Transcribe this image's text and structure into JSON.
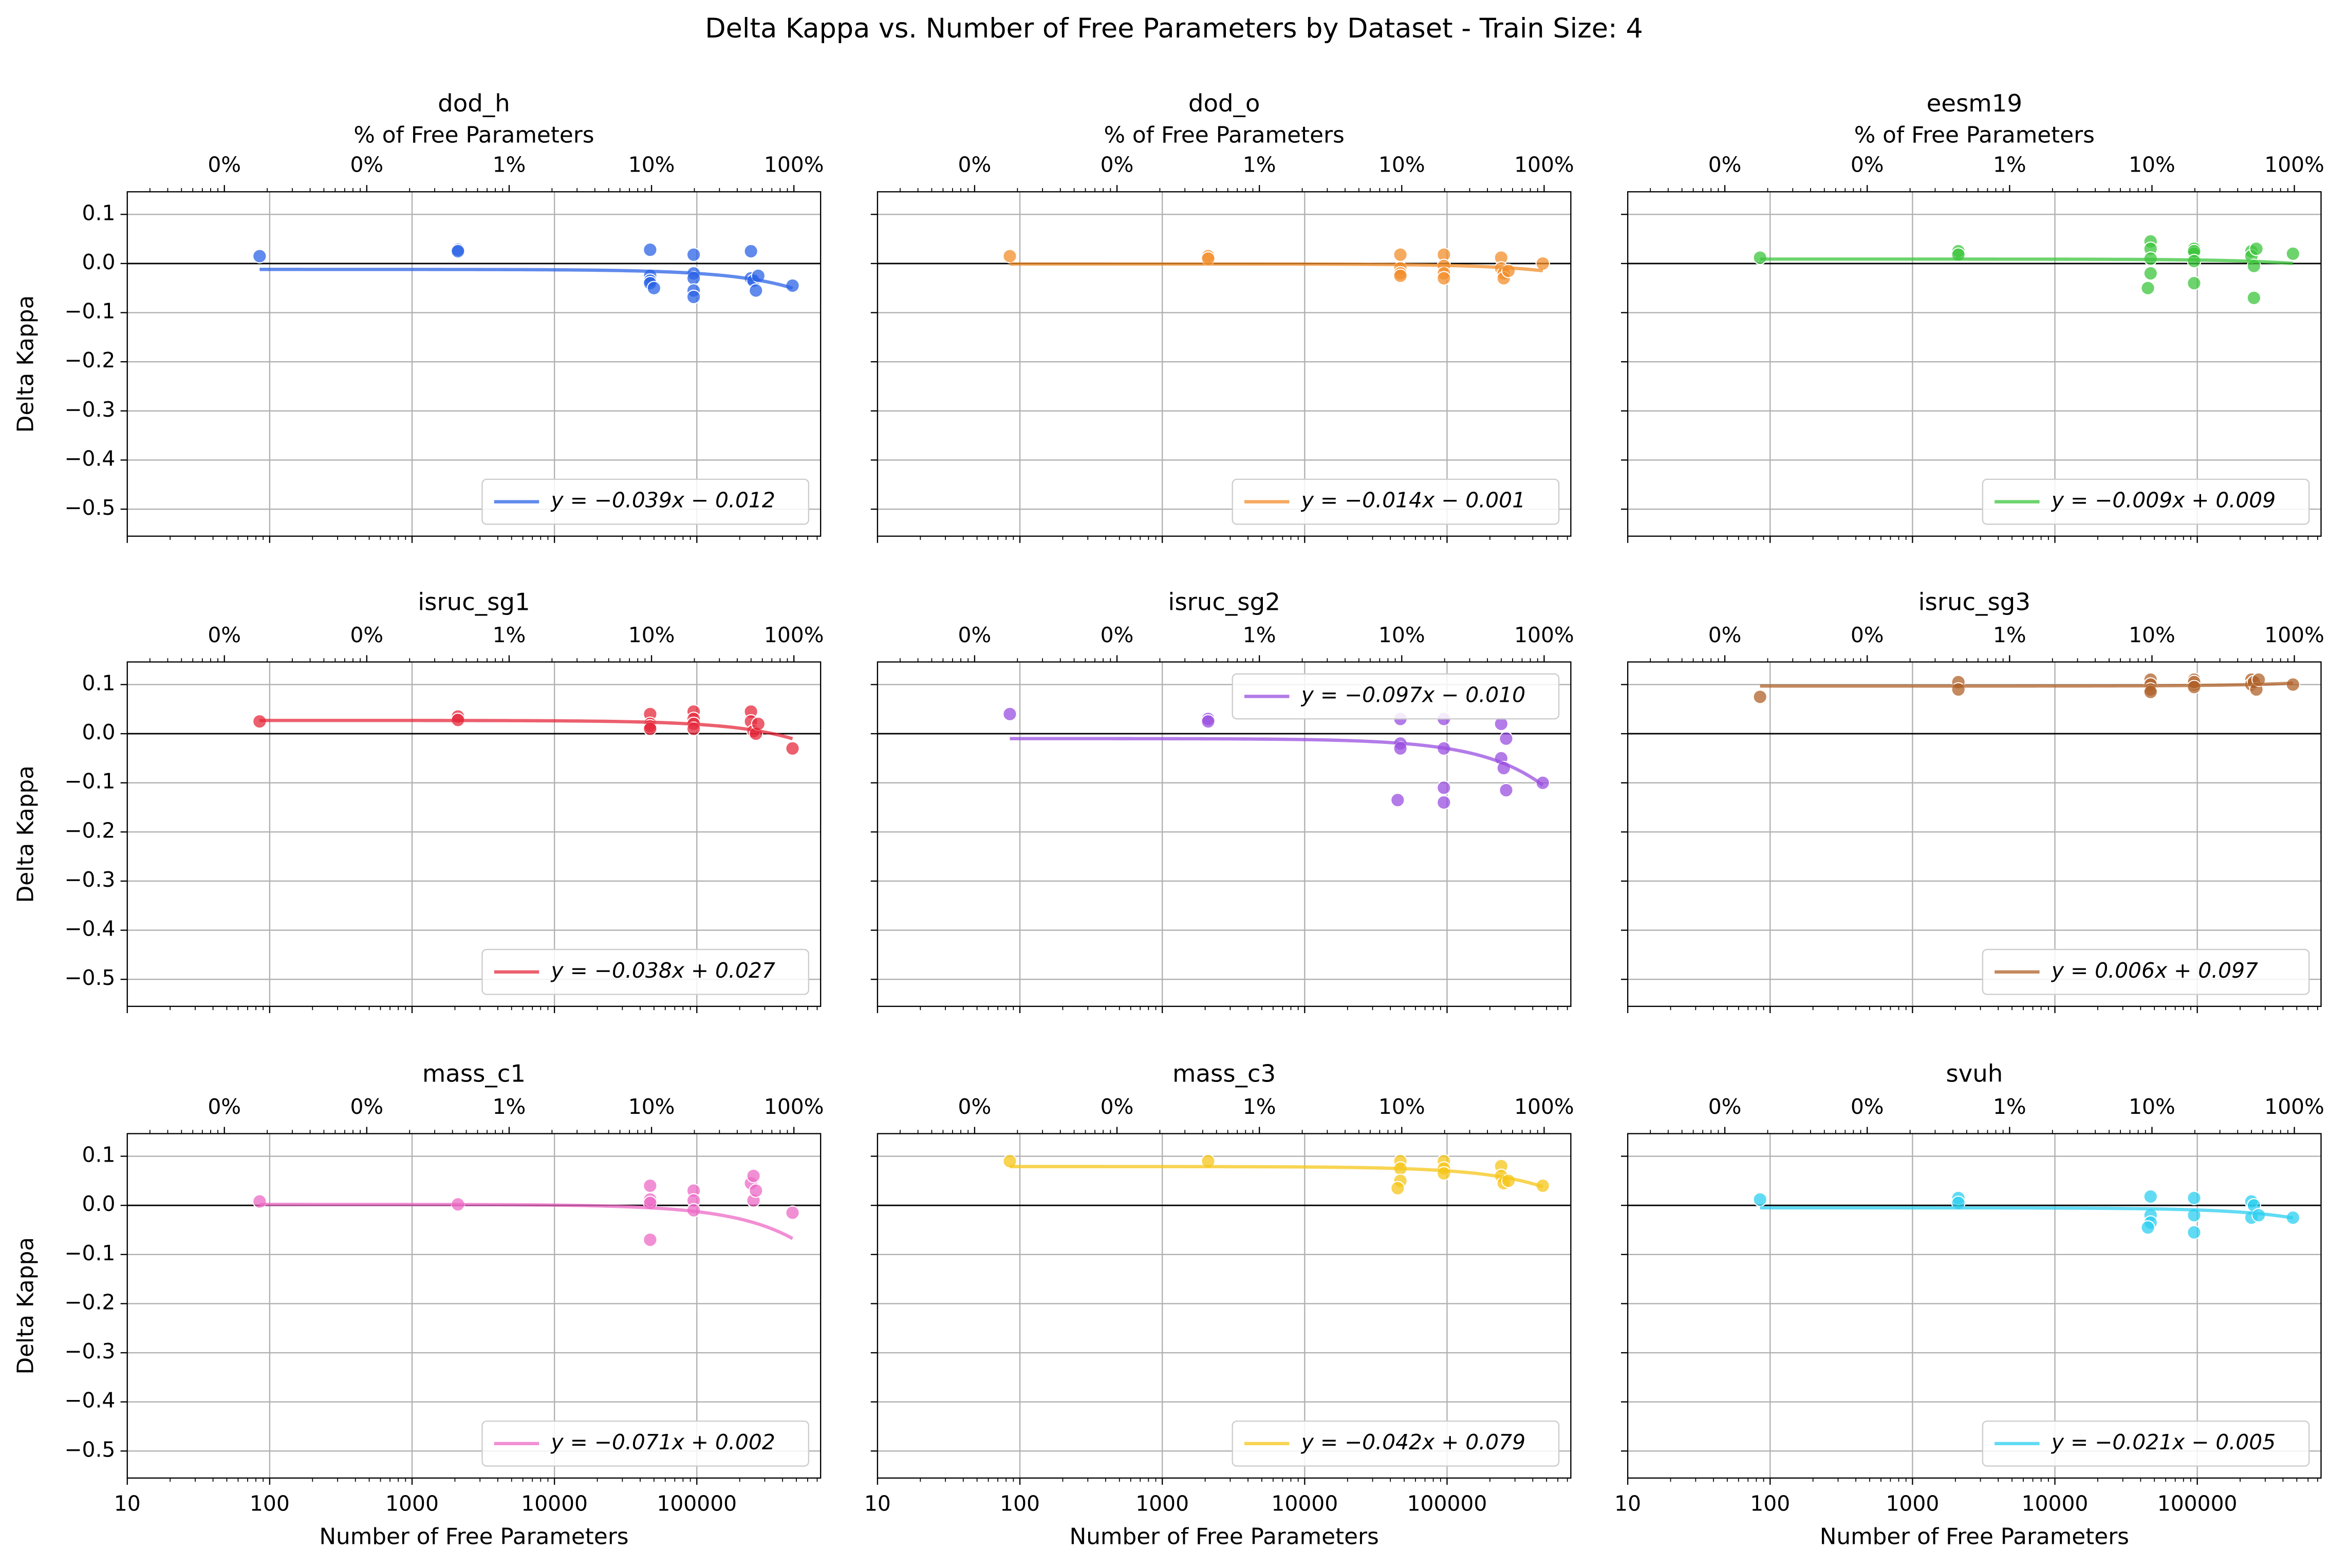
{
  "figure": {
    "title": "Delta Kappa vs. Number of Free Parameters by Dataset - Train Size: 4"
  },
  "chart_data": [
    {
      "type": "scatter",
      "title": "dod_h",
      "x2label": "% of Free Parameters",
      "ylabel": "Delta Kappa",
      "xticklabels": false,
      "yticklabels": true,
      "xscale": "log",
      "grid": true,
      "reference_line": 0,
      "legend_loc": "lower right",
      "xlim": [
        10,
        740000
      ],
      "xticks": [
        10,
        100,
        1000,
        10000,
        100000
      ],
      "x2lim": [
        0.00208,
        154
      ],
      "x2ticks": [
        {
          "value": 0.01,
          "label": "0%"
        },
        {
          "value": 0.1,
          "label": "0%"
        },
        {
          "value": 1,
          "label": "1%"
        },
        {
          "value": 10,
          "label": "10%"
        },
        {
          "value": 100,
          "label": "100%"
        }
      ],
      "ylim": [
        -0.555,
        0.146
      ],
      "yticks": [
        0.1,
        {
          "value": 0,
          "label": "0.0"
        },
        {
          "value": -0.1,
          "label": "−0.1"
        },
        {
          "value": -0.2,
          "label": "−0.2"
        },
        {
          "value": -0.3,
          "label": "−0.3"
        },
        {
          "value": -0.4,
          "label": "−0.4"
        },
        {
          "value": -0.5,
          "label": "−0.5"
        }
      ],
      "color": "#2b63e6",
      "x": [
        85,
        2100,
        2100,
        47000,
        47000,
        47000,
        47000,
        50000,
        95000,
        95000,
        95000,
        95000,
        95000,
        240000,
        240000,
        250000,
        260000,
        270000,
        470000
      ],
      "values": [
        0.015,
        0.028,
        0.025,
        0.028,
        -0.025,
        -0.035,
        -0.04,
        -0.05,
        0.018,
        -0.02,
        -0.03,
        -0.055,
        -0.068,
        0.025,
        -0.03,
        -0.035,
        -0.055,
        -0.025,
        -0.045
      ],
      "fit": {
        "label": "y = −0.039x − 0.012",
        "slope": -0.039,
        "intercept": -0.012
      }
    },
    {
      "type": "scatter",
      "title": "dod_o",
      "x2label": "% of Free Parameters",
      "xticklabels": false,
      "yticklabels": false,
      "xscale": "log",
      "grid": true,
      "reference_line": 0,
      "legend_loc": "lower right",
      "xlim": [
        10,
        740000
      ],
      "xticks": [
        10,
        100,
        1000,
        10000,
        100000
      ],
      "x2lim": [
        0.00208,
        154
      ],
      "x2ticks": [
        {
          "value": 0.01,
          "label": "0%"
        },
        {
          "value": 0.1,
          "label": "0%"
        },
        {
          "value": 1,
          "label": "1%"
        },
        {
          "value": 10,
          "label": "10%"
        },
        {
          "value": 100,
          "label": "100%"
        }
      ],
      "ylim": [
        -0.555,
        0.146
      ],
      "yticks": [
        0.1,
        0,
        -0.1,
        -0.2,
        -0.3,
        -0.4,
        -0.5
      ],
      "color": "#f28e2b",
      "x": [
        85,
        2100,
        2100,
        47000,
        47000,
        47000,
        47000,
        95000,
        95000,
        95000,
        95000,
        240000,
        240000,
        250000,
        250000,
        270000,
        470000
      ],
      "values": [
        0.015,
        0.015,
        0.01,
        0.018,
        -0.01,
        -0.02,
        -0.025,
        0.018,
        -0.005,
        -0.02,
        -0.03,
        0.012,
        -0.01,
        -0.02,
        -0.03,
        -0.015,
        0.0
      ],
      "fit": {
        "label": "y = −0.014x − 0.001",
        "slope": -0.014,
        "intercept": -0.001
      }
    },
    {
      "type": "scatter",
      "title": "eesm19",
      "x2label": "% of Free Parameters",
      "xticklabels": false,
      "yticklabels": false,
      "xscale": "log",
      "grid": true,
      "reference_line": 0,
      "legend_loc": "lower right",
      "xlim": [
        10,
        740000
      ],
      "xticks": [
        10,
        100,
        1000,
        10000,
        100000
      ],
      "x2lim": [
        0.00208,
        154
      ],
      "x2ticks": [
        {
          "value": 0.01,
          "label": "0%"
        },
        {
          "value": 0.1,
          "label": "0%"
        },
        {
          "value": 1,
          "label": "1%"
        },
        {
          "value": 10,
          "label": "10%"
        },
        {
          "value": 100,
          "label": "100%"
        }
      ],
      "ylim": [
        -0.555,
        0.146
      ],
      "yticks": [
        0.1,
        0,
        -0.1,
        -0.2,
        -0.3,
        -0.4,
        -0.5
      ],
      "color": "#3cc63c",
      "x": [
        85,
        2100,
        2100,
        47000,
        47000,
        47000,
        47000,
        45000,
        95000,
        95000,
        95000,
        95000,
        95000,
        240000,
        240000,
        250000,
        250000,
        260000,
        470000
      ],
      "values": [
        0.012,
        0.025,
        0.018,
        0.045,
        0.03,
        0.01,
        -0.02,
        -0.05,
        0.03,
        0.02,
        0.025,
        0.005,
        -0.04,
        0.025,
        0.015,
        -0.005,
        -0.07,
        0.03,
        0.02
      ],
      "fit": {
        "label": "y = −0.009x + 0.009",
        "slope": -0.009,
        "intercept": 0.009
      }
    },
    {
      "type": "scatter",
      "title": "isruc_sg1",
      "ylabel": "Delta Kappa",
      "xticklabels": false,
      "yticklabels": true,
      "xscale": "log",
      "grid": true,
      "reference_line": 0,
      "legend_loc": "lower right",
      "xlim": [
        10,
        740000
      ],
      "xticks": [
        10,
        100,
        1000,
        10000,
        100000
      ],
      "x2lim": [
        0.00208,
        154
      ],
      "x2ticks": [
        {
          "value": 0.01,
          "label": "0%"
        },
        {
          "value": 0.1,
          "label": "0%"
        },
        {
          "value": 1,
          "label": "1%"
        },
        {
          "value": 10,
          "label": "10%"
        },
        {
          "value": 100,
          "label": "100%"
        }
      ],
      "ylim": [
        -0.555,
        0.146
      ],
      "yticks": [
        0.1,
        {
          "value": 0,
          "label": "0.0"
        },
        {
          "value": -0.1,
          "label": "−0.1"
        },
        {
          "value": -0.2,
          "label": "−0.2"
        },
        {
          "value": -0.3,
          "label": "−0.3"
        },
        {
          "value": -0.4,
          "label": "−0.4"
        },
        {
          "value": -0.5,
          "label": "−0.5"
        }
      ],
      "color": "#e62a3c",
      "x": [
        85,
        2100,
        2100,
        47000,
        47000,
        47000,
        47000,
        95000,
        95000,
        95000,
        95000,
        240000,
        240000,
        250000,
        260000,
        270000,
        470000
      ],
      "values": [
        0.025,
        0.035,
        0.028,
        0.04,
        0.02,
        0.015,
        0.01,
        0.045,
        0.03,
        0.02,
        0.01,
        0.045,
        0.025,
        0.005,
        0.0,
        0.02,
        -0.03
      ],
      "fit": {
        "label": "y = −0.038x + 0.027",
        "slope": -0.038,
        "intercept": 0.027
      }
    },
    {
      "type": "scatter",
      "title": "isruc_sg2",
      "xticklabels": false,
      "yticklabels": false,
      "xscale": "log",
      "grid": true,
      "reference_line": 0,
      "legend_loc": "upper right",
      "xlim": [
        10,
        740000
      ],
      "xticks": [
        10,
        100,
        1000,
        10000,
        100000
      ],
      "x2lim": [
        0.00208,
        154
      ],
      "x2ticks": [
        {
          "value": 0.01,
          "label": "0%"
        },
        {
          "value": 0.1,
          "label": "0%"
        },
        {
          "value": 1,
          "label": "1%"
        },
        {
          "value": 10,
          "label": "10%"
        },
        {
          "value": 100,
          "label": "100%"
        }
      ],
      "ylim": [
        -0.555,
        0.146
      ],
      "yticks": [
        0.1,
        0,
        -0.1,
        -0.2,
        -0.3,
        -0.4,
        -0.5
      ],
      "color": "#9a4fe0",
      "x": [
        85,
        2100,
        2100,
        47000,
        47000,
        47000,
        45000,
        95000,
        95000,
        95000,
        95000,
        240000,
        240000,
        250000,
        260000,
        260000,
        470000
      ],
      "values": [
        0.04,
        0.03,
        0.025,
        0.03,
        -0.02,
        -0.03,
        -0.135,
        0.03,
        -0.03,
        -0.11,
        -0.14,
        0.02,
        -0.05,
        -0.07,
        -0.01,
        -0.115,
        -0.1
      ],
      "fit": {
        "label": "y = −0.097x − 0.010",
        "slope": -0.097,
        "intercept": -0.01
      }
    },
    {
      "type": "scatter",
      "title": "isruc_sg3",
      "xticklabels": false,
      "yticklabels": false,
      "xscale": "log",
      "grid": true,
      "reference_line": 0,
      "legend_loc": "lower right",
      "xlim": [
        10,
        740000
      ],
      "xticks": [
        10,
        100,
        1000,
        10000,
        100000
      ],
      "x2lim": [
        0.00208,
        154
      ],
      "x2ticks": [
        {
          "value": 0.01,
          "label": "0%"
        },
        {
          "value": 0.1,
          "label": "0%"
        },
        {
          "value": 1,
          "label": "1%"
        },
        {
          "value": 10,
          "label": "10%"
        },
        {
          "value": 100,
          "label": "100%"
        }
      ],
      "ylim": [
        -0.555,
        0.146
      ],
      "yticks": [
        0.1,
        0,
        -0.1,
        -0.2,
        -0.3,
        -0.4,
        -0.5
      ],
      "color": "#b0622a",
      "x": [
        85,
        2100,
        2100,
        47000,
        47000,
        47000,
        47000,
        95000,
        95000,
        95000,
        95000,
        240000,
        240000,
        250000,
        260000,
        270000,
        470000
      ],
      "values": [
        0.075,
        0.105,
        0.09,
        0.11,
        0.1,
        0.09,
        0.085,
        0.11,
        0.1,
        0.105,
        0.095,
        0.11,
        0.1,
        0.105,
        0.09,
        0.11,
        0.1
      ],
      "fit": {
        "label": "y = 0.006x + 0.097",
        "slope": 0.006,
        "intercept": 0.097
      }
    },
    {
      "type": "scatter",
      "title": "mass_c1",
      "xlabel": "Number of Free Parameters",
      "ylabel": "Delta Kappa",
      "xticklabels": true,
      "yticklabels": true,
      "xscale": "log",
      "grid": true,
      "reference_line": 0,
      "legend_loc": "lower right",
      "xlim": [
        10,
        740000
      ],
      "xticks": [
        10,
        100,
        1000,
        10000,
        100000
      ],
      "x2lim": [
        0.00208,
        154
      ],
      "x2ticks": [
        {
          "value": 0.01,
          "label": "0%"
        },
        {
          "value": 0.1,
          "label": "0%"
        },
        {
          "value": 1,
          "label": "1%"
        },
        {
          "value": 10,
          "label": "10%"
        },
        {
          "value": 100,
          "label": "100%"
        }
      ],
      "ylim": [
        -0.555,
        0.146
      ],
      "yticks": [
        0.1,
        {
          "value": 0,
          "label": "0.0"
        },
        {
          "value": -0.1,
          "label": "−0.1"
        },
        {
          "value": -0.2,
          "label": "−0.2"
        },
        {
          "value": -0.3,
          "label": "−0.3"
        },
        {
          "value": -0.4,
          "label": "−0.4"
        },
        {
          "value": -0.5,
          "label": "−0.5"
        }
      ],
      "color": "#ec6ac6",
      "x": [
        85,
        2100,
        47000,
        47000,
        47000,
        47000,
        95000,
        95000,
        95000,
        240000,
        250000,
        250000,
        260000,
        470000
      ],
      "values": [
        0.008,
        0.002,
        0.04,
        0.012,
        0.005,
        -0.07,
        0.03,
        0.01,
        -0.01,
        0.045,
        0.06,
        0.01,
        0.03,
        -0.015
      ],
      "fit": {
        "label": "y = −0.071x + 0.002",
        "slope": -0.071,
        "intercept": 0.002
      }
    },
    {
      "type": "scatter",
      "title": "mass_c3",
      "xlabel": "Number of Free Parameters",
      "xticklabels": true,
      "yticklabels": false,
      "xscale": "log",
      "grid": true,
      "reference_line": 0,
      "legend_loc": "lower right",
      "xlim": [
        10,
        740000
      ],
      "xticks": [
        10,
        100,
        1000,
        10000,
        100000
      ],
      "x2lim": [
        0.00208,
        154
      ],
      "x2ticks": [
        {
          "value": 0.01,
          "label": "0%"
        },
        {
          "value": 0.1,
          "label": "0%"
        },
        {
          "value": 1,
          "label": "1%"
        },
        {
          "value": 10,
          "label": "10%"
        },
        {
          "value": 100,
          "label": "100%"
        }
      ],
      "ylim": [
        -0.555,
        0.146
      ],
      "yticks": [
        0.1,
        0,
        -0.1,
        -0.2,
        -0.3,
        -0.4,
        -0.5
      ],
      "color": "#f5c518",
      "x": [
        85,
        2100,
        47000,
        47000,
        47000,
        45000,
        95000,
        95000,
        95000,
        240000,
        240000,
        250000,
        270000,
        470000
      ],
      "values": [
        0.09,
        0.09,
        0.09,
        0.075,
        0.05,
        0.035,
        0.09,
        0.075,
        0.065,
        0.08,
        0.06,
        0.045,
        0.05,
        0.04
      ],
      "fit": {
        "label": "y = −0.042x + 0.079",
        "slope": -0.042,
        "intercept": 0.079
      }
    },
    {
      "type": "scatter",
      "title": "svuh",
      "xlabel": "Number of Free Parameters",
      "xticklabels": true,
      "yticklabels": false,
      "xscale": "log",
      "grid": true,
      "reference_line": 0,
      "legend_loc": "lower right",
      "xlim": [
        10,
        740000
      ],
      "xticks": [
        10,
        100,
        1000,
        10000,
        100000
      ],
      "x2lim": [
        0.00208,
        154
      ],
      "x2ticks": [
        {
          "value": 0.01,
          "label": "0%"
        },
        {
          "value": 0.1,
          "label": "0%"
        },
        {
          "value": 1,
          "label": "1%"
        },
        {
          "value": 10,
          "label": "10%"
        },
        {
          "value": 100,
          "label": "100%"
        }
      ],
      "ylim": [
        -0.555,
        0.146
      ],
      "yticks": [
        0.1,
        0,
        -0.1,
        -0.2,
        -0.3,
        -0.4,
        -0.5
      ],
      "color": "#2ccff0",
      "x": [
        85,
        2100,
        2100,
        47000,
        47000,
        47000,
        45000,
        95000,
        95000,
        95000,
        240000,
        240000,
        250000,
        270000,
        470000
      ],
      "values": [
        0.012,
        0.015,
        0.005,
        0.018,
        -0.02,
        -0.035,
        -0.045,
        0.015,
        -0.02,
        -0.055,
        0.008,
        -0.025,
        0.0,
        -0.02,
        -0.025
      ],
      "fit": {
        "label": "y = −0.021x − 0.005",
        "slope": -0.021,
        "intercept": -0.005
      }
    }
  ]
}
